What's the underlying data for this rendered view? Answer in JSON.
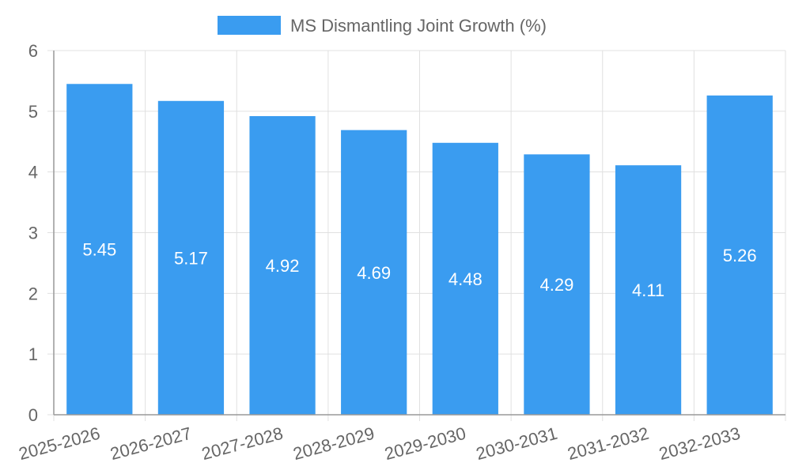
{
  "chart_data": {
    "type": "bar",
    "title": "",
    "xlabel": "",
    "ylabel": "",
    "legend_position": "top-center",
    "categories": [
      "2025-2026",
      "2026-2027",
      "2027-2028",
      "2028-2029",
      "2029-2030",
      "2030-2031",
      "2031-2032",
      "2032-2033"
    ],
    "series": [
      {
        "name": "MS Dismantling Joint Growth (%)",
        "values": [
          5.45,
          5.17,
          4.92,
          4.69,
          4.48,
          4.29,
          4.11,
          5.26
        ],
        "data_labels": [
          "5.45",
          "5.17",
          "4.92",
          "4.69",
          "4.48",
          "4.29",
          "4.11",
          "5.26"
        ]
      }
    ],
    "ylim": [
      0,
      6
    ],
    "yticks": [
      0,
      1,
      2,
      3,
      4,
      5,
      6
    ],
    "ytick_labels": [
      "0",
      "1",
      "2",
      "3",
      "4",
      "5",
      "6"
    ],
    "grid": true
  },
  "colors": {
    "bar": "#3a9cf0",
    "grid": "#e0e0e0",
    "axis": "#999999",
    "text": "#666666",
    "value_text": "#ffffff"
  }
}
